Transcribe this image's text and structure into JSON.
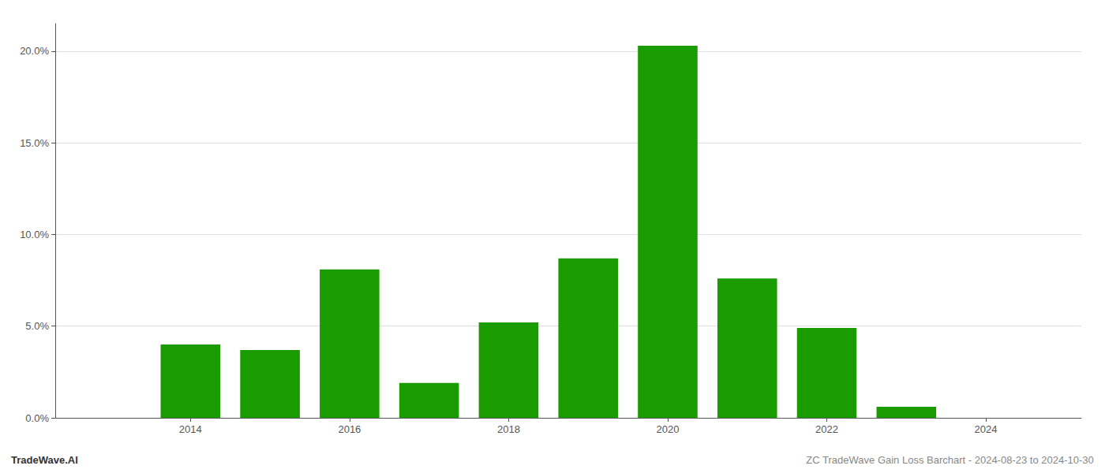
{
  "chart_data": {
    "type": "bar",
    "x": [
      2013,
      2014,
      2015,
      2016,
      2017,
      2018,
      2019,
      2020,
      2021,
      2022,
      2023,
      2024
    ],
    "values": [
      0.0,
      0.04,
      0.037,
      0.081,
      0.019,
      0.052,
      0.087,
      0.203,
      0.076,
      0.049,
      0.006,
      0.0
    ],
    "color": "#1a9c00",
    "xlim": [
      2012.3,
      2025.2
    ],
    "xticks": [
      2014,
      2016,
      2018,
      2020,
      2022,
      2024
    ],
    "ylim": [
      0.0,
      0.215
    ],
    "yticks": [
      {
        "value": 0.0,
        "label": "0.0%"
      },
      {
        "value": 0.05,
        "label": "5.0%"
      },
      {
        "value": 0.1,
        "label": "10.0%"
      },
      {
        "value": 0.15,
        "label": "15.0%"
      },
      {
        "value": 0.2,
        "label": "20.0%"
      }
    ],
    "grid": true,
    "annotations": [
      {
        "text": "TradeWave.AI"
      },
      {
        "text": "ZC TradeWave Gain Loss Barchart - 2024-08-23 to 2024-10-30"
      }
    ]
  }
}
